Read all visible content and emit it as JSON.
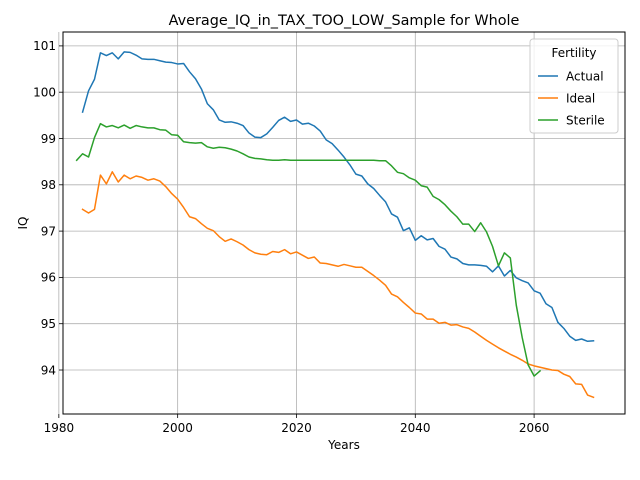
{
  "chart_data": {
    "type": "line",
    "title": "Average_IQ_in_TAX_TOO_LOW_Sample for Whole",
    "xlabel": "Years",
    "ylabel": "IQ",
    "xlim": [
      1980.7,
      2075.3
    ],
    "ylim": [
      93.05,
      101.3
    ],
    "xticks": [
      1980,
      2000,
      2020,
      2040,
      2060
    ],
    "yticks": [
      94,
      95,
      96,
      97,
      98,
      99,
      100,
      101
    ],
    "grid": true,
    "legend": {
      "title": "Fertility",
      "placement": "top-right"
    },
    "colors": {
      "Actual": "#1f77b4",
      "Ideal": "#ff7f0e",
      "Sterile": "#2ca02c"
    },
    "series": [
      {
        "name": "Actual",
        "x": [
          1984,
          1985,
          1986,
          1987,
          1988,
          1989,
          1990,
          1991,
          1992,
          1993,
          1994,
          1995,
          1996,
          1997,
          1998,
          1999,
          2000,
          2001,
          2002,
          2003,
          2004,
          2005,
          2006,
          2007,
          2008,
          2009,
          2010,
          2011,
          2012,
          2013,
          2014,
          2015,
          2016,
          2017,
          2018,
          2019,
          2020,
          2021,
          2022,
          2023,
          2024,
          2025,
          2026,
          2027,
          2028,
          2029,
          2030,
          2031,
          2032,
          2033,
          2034,
          2035,
          2036,
          2037,
          2038,
          2039,
          2040,
          2041,
          2042,
          2043,
          2044,
          2045,
          2046,
          2047,
          2048,
          2049,
          2050,
          2051,
          2052,
          2053,
          2054,
          2055,
          2056,
          2057,
          2058,
          2059,
          2060,
          2061,
          2062,
          2063,
          2064,
          2065,
          2066,
          2067,
          2068,
          2069,
          2070
        ],
        "values": [
          99.57,
          100.03,
          100.28,
          100.85,
          100.79,
          100.85,
          100.72,
          100.87,
          100.86,
          100.8,
          100.72,
          100.71,
          100.71,
          100.68,
          100.65,
          100.64,
          100.61,
          100.62,
          100.44,
          100.29,
          100.07,
          99.75,
          99.62,
          99.4,
          99.35,
          99.36,
          99.33,
          99.28,
          99.12,
          99.03,
          99.02,
          99.1,
          99.24,
          99.39,
          99.46,
          99.37,
          99.4,
          99.31,
          99.33,
          99.27,
          99.16,
          98.97,
          98.89,
          98.75,
          98.6,
          98.43,
          98.23,
          98.19,
          98.02,
          97.92,
          97.77,
          97.63,
          97.37,
          97.3,
          97.01,
          97.07,
          96.8,
          96.9,
          96.81,
          96.84,
          96.67,
          96.61,
          96.44,
          96.4,
          96.3,
          96.27,
          96.27,
          96.26,
          96.24,
          96.12,
          96.25,
          96.03,
          96.15,
          95.99,
          95.93,
          95.88,
          95.71,
          95.66,
          95.43,
          95.35,
          95.03,
          94.9,
          94.73,
          94.64,
          94.67,
          94.62,
          94.63
        ]
      },
      {
        "name": "Ideal",
        "x": [
          1984,
          1985,
          1986,
          1987,
          1988,
          1989,
          1990,
          1991,
          1992,
          1993,
          1994,
          1995,
          1996,
          1997,
          1998,
          1999,
          2000,
          2001,
          2002,
          2003,
          2004,
          2005,
          2006,
          2007,
          2008,
          2009,
          2010,
          2011,
          2012,
          2013,
          2014,
          2015,
          2016,
          2017,
          2018,
          2019,
          2020,
          2021,
          2022,
          2023,
          2024,
          2025,
          2026,
          2027,
          2028,
          2029,
          2030,
          2031,
          2032,
          2033,
          2034,
          2035,
          2036,
          2037,
          2038,
          2039,
          2040,
          2041,
          2042,
          2043,
          2044,
          2045,
          2046,
          2047,
          2048,
          2049,
          2050,
          2051,
          2052,
          2053,
          2054,
          2055,
          2056,
          2057,
          2058,
          2059,
          2060,
          2061,
          2062,
          2063,
          2064,
          2065,
          2066,
          2067,
          2068,
          2069,
          2070
        ],
        "values": [
          97.47,
          97.39,
          97.47,
          98.21,
          98.02,
          98.28,
          98.06,
          98.21,
          98.13,
          98.19,
          98.16,
          98.1,
          98.13,
          98.08,
          97.96,
          97.81,
          97.69,
          97.51,
          97.31,
          97.27,
          97.16,
          97.06,
          97.01,
          96.88,
          96.78,
          96.83,
          96.77,
          96.7,
          96.6,
          96.53,
          96.5,
          96.49,
          96.56,
          96.54,
          96.6,
          96.51,
          96.55,
          96.48,
          96.41,
          96.44,
          96.31,
          96.3,
          96.27,
          96.24,
          96.28,
          96.25,
          96.22,
          96.22,
          96.13,
          96.04,
          95.94,
          95.83,
          95.64,
          95.58,
          95.46,
          95.35,
          95.23,
          95.21,
          95.1,
          95.1,
          95.01,
          95.03,
          94.97,
          94.98,
          94.93,
          94.9,
          94.82,
          94.73,
          94.64,
          94.56,
          94.48,
          94.41,
          94.34,
          94.28,
          94.21,
          94.13,
          94.09,
          94.06,
          94.03,
          94.0,
          93.99,
          93.91,
          93.86,
          93.7,
          93.69,
          93.46,
          93.41
        ]
      },
      {
        "name": "Sterile",
        "x": [
          1983,
          1984,
          1985,
          1986,
          1987,
          1988,
          1989,
          1990,
          1991,
          1992,
          1993,
          1994,
          1995,
          1996,
          1997,
          1998,
          1999,
          2000,
          2001,
          2002,
          2003,
          2004,
          2005,
          2006,
          2007,
          2008,
          2009,
          2010,
          2011,
          2012,
          2013,
          2014,
          2015,
          2016,
          2017,
          2018,
          2019,
          2020,
          2021,
          2022,
          2023,
          2024,
          2025,
          2026,
          2027,
          2028,
          2029,
          2030,
          2031,
          2032,
          2033,
          2034,
          2035,
          2036,
          2037,
          2038,
          2039,
          2040,
          2041,
          2042,
          2043,
          2044,
          2045,
          2046,
          2047,
          2048,
          2049,
          2050,
          2051,
          2052,
          2053,
          2054,
          2055,
          2056,
          2057,
          2058,
          2059,
          2060,
          2061
        ],
        "values": [
          98.53,
          98.67,
          98.6,
          99.02,
          99.32,
          99.25,
          99.28,
          99.23,
          99.29,
          99.22,
          99.28,
          99.25,
          99.23,
          99.23,
          99.19,
          99.18,
          99.08,
          99.07,
          98.93,
          98.91,
          98.9,
          98.91,
          98.82,
          98.79,
          98.81,
          98.8,
          98.77,
          98.73,
          98.67,
          98.6,
          98.57,
          98.56,
          98.54,
          98.53,
          98.53,
          98.54,
          98.53,
          98.53,
          98.53,
          98.53,
          98.53,
          98.53,
          98.53,
          98.53,
          98.53,
          98.53,
          98.53,
          98.53,
          98.53,
          98.53,
          98.53,
          98.52,
          98.52,
          98.41,
          98.27,
          98.24,
          98.15,
          98.1,
          97.98,
          97.95,
          97.75,
          97.68,
          97.57,
          97.43,
          97.31,
          97.15,
          97.15,
          96.99,
          97.18,
          96.98,
          96.67,
          96.25,
          96.53,
          96.42,
          95.4,
          94.7,
          94.11,
          93.87,
          93.98
        ]
      }
    ]
  }
}
